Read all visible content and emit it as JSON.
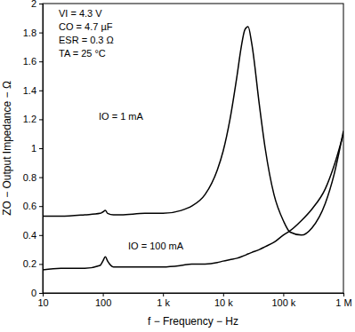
{
  "chart_data": {
    "type": "line",
    "x_label": "f − Frequency − Hz",
    "y_label": "ZO − Output Impedance − Ω",
    "annotations": [
      "VI = 4.3 V",
      "CO = 4.7 µF",
      "ESR = 0.3 Ω",
      "TA = 25 °C"
    ],
    "log": "x",
    "grid": false,
    "x": [
      10,
      20,
      50,
      90,
      100,
      110,
      120,
      150,
      200,
      500,
      1000,
      2000,
      3000,
      5000,
      8000,
      10000,
      13000,
      17000,
      20000,
      23000,
      26000,
      30000,
      40000,
      50000,
      70000,
      100000,
      130000,
      200000,
      300000,
      500000,
      700000,
      1000000
    ],
    "series": [
      {
        "name": "IO = 1 mA",
        "color": "#000000",
        "values": [
          0.53,
          0.53,
          0.54,
          0.55,
          0.56,
          0.57,
          0.55,
          0.54,
          0.54,
          0.55,
          0.55,
          0.57,
          0.6,
          0.68,
          0.85,
          0.98,
          1.2,
          1.5,
          1.7,
          1.82,
          1.84,
          1.72,
          1.3,
          1.0,
          0.68,
          0.5,
          0.42,
          0.4,
          0.45,
          0.62,
          0.82,
          1.12
        ]
      },
      {
        "name": "IO = 100 mA",
        "color": "#000000",
        "values": [
          0.16,
          0.17,
          0.17,
          0.19,
          0.22,
          0.25,
          0.22,
          0.18,
          0.18,
          0.18,
          0.18,
          0.19,
          0.2,
          0.2,
          0.21,
          0.22,
          0.23,
          0.24,
          0.25,
          0.26,
          0.27,
          0.28,
          0.3,
          0.32,
          0.35,
          0.4,
          0.43,
          0.5,
          0.58,
          0.72,
          0.88,
          1.1
        ]
      }
    ],
    "xlim": [
      10,
      1000000
    ],
    "xticks": [
      10,
      100,
      {
        "value": 1000,
        "label": "1 k"
      },
      {
        "value": 10000,
        "label": "10 k"
      },
      {
        "value": 100000,
        "label": "100 k"
      },
      {
        "value": 1000000,
        "label": "1 M"
      }
    ],
    "ylim": [
      0,
      2
    ],
    "yticks": [
      0,
      0.2,
      0.4,
      0.6,
      0.8,
      1,
      1.2,
      1.4,
      1.6,
      1.8,
      2
    ]
  }
}
